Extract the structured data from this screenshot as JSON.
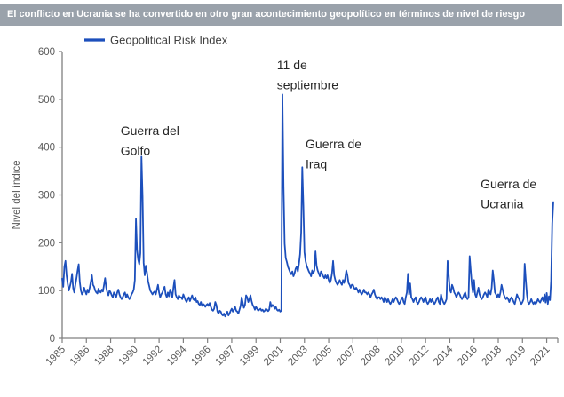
{
  "banner": {
    "title": "El conflicto en Ucrania se ha convertido en otro gran acontecimiento geopolítico en términos de nivel de riesgo"
  },
  "colors": {
    "banner_bg": "#9aa2ab",
    "line": "#1c4fbc",
    "axis": "#808080",
    "tick_label": "#595959",
    "annotation": "#262626",
    "legend_text": "#404040"
  },
  "chart_data": {
    "type": "line",
    "legend": [
      {
        "label": "Geopolitical Risk Index"
      }
    ],
    "ylabel": "Nivel del índice",
    "ylim": [
      0,
      600
    ],
    "y_ticks": [
      0,
      100,
      200,
      300,
      400,
      500,
      600
    ],
    "grid": false,
    "legend_position": "top-left",
    "x_start_year": 1985,
    "x_tick_interval_months": 22,
    "x_tick_labels": [
      "1985",
      "1986",
      "1988",
      "1990",
      "1992",
      "1994",
      "1996",
      "1997",
      "1999",
      "2001",
      "2003",
      "2005",
      "2007",
      "2008",
      "2010",
      "2012",
      "2014",
      "2016",
      "2018",
      "2019",
      "2021"
    ],
    "series": [
      {
        "name": "Geopolitical Risk Index",
        "frequency": "monthly",
        "values": [
          125,
          108,
          150,
          162,
          132,
          115,
          100,
          108,
          118,
          135,
          105,
          96,
          112,
          126,
          142,
          155,
          118,
          100,
          92,
          96,
          106,
          98,
          92,
          102,
          96,
          106,
          118,
          132,
          112,
          108,
          100,
          96,
          94,
          104,
          98,
          96,
          102,
          98,
          112,
          126,
          106,
          96,
          90,
          100,
          96,
          90,
          86,
          96,
          92,
          86,
          96,
          102,
          92,
          86,
          82,
          86,
          92,
          96,
          86,
          92,
          86,
          82,
          86,
          92,
          96,
          102,
          122,
          250,
          185,
          165,
          155,
          178,
          380,
          298,
          158,
          132,
          152,
          138,
          120,
          110,
          100,
          96,
          92,
          96,
          98,
          92,
          102,
          112,
          96,
          86,
          92,
          96,
          102,
          108,
          92,
          86,
          96,
          88,
          102,
          96,
          86,
          106,
          122,
          92,
          86,
          82,
          90,
          86,
          86,
          82,
          92,
          86,
          80,
          76,
          82,
          86,
          78,
          84,
          90,
          82,
          80,
          86,
          76,
          78,
          72,
          70,
          76,
          68,
          72,
          70,
          66,
          70,
          72,
          68,
          74,
          66,
          60,
          58,
          62,
          76,
          70,
          56,
          52,
          58,
          56,
          50,
          48,
          52,
          46,
          50,
          56,
          48,
          52,
          58,
          62,
          56,
          60,
          66,
          58,
          56,
          52,
          60,
          68,
          86,
          74,
          64,
          70,
          90,
          86,
          76,
          82,
          90,
          78,
          70,
          66,
          60,
          66,
          62,
          58,
          60,
          62,
          58,
          60,
          56,
          58,
          62,
          60,
          57,
          60,
          76,
          66,
          70,
          68,
          62,
          66,
          60,
          58,
          60,
          56,
          58,
          510,
          318,
          198,
          168,
          160,
          150,
          144,
          138,
          134,
          140,
          130,
          136,
          146,
          150,
          140,
          156,
          176,
          222,
          358,
          278,
          180,
          162,
          152,
          146,
          140,
          136,
          130,
          142,
          136,
          142,
          182,
          152,
          142,
          136,
          130,
          140,
          136,
          130,
          126,
          132,
          126,
          132,
          122,
          116,
          122,
          136,
          162,
          132,
          122,
          116,
          112,
          116,
          122,
          116,
          112,
          122,
          116,
          126,
          142,
          132,
          116,
          112,
          106,
          112,
          112,
          106,
          102,
          106,
          102,
          96,
          102,
          96,
          92,
          96,
          102,
          96,
          96,
          92,
          96,
          92,
          86,
          92,
          96,
          102,
          92,
          86,
          82,
          86,
          86,
          82,
          86,
          82,
          76,
          86,
          82,
          76,
          82,
          76,
          72,
          76,
          82,
          76,
          82,
          86,
          82,
          76,
          72,
          76,
          82,
          86,
          76,
          72,
          86,
          96,
          135,
          92,
          115,
          86,
          82,
          76,
          82,
          86,
          76,
          72,
          76,
          82,
          86,
          82,
          76,
          82,
          86,
          76,
          72,
          76,
          82,
          76,
          82,
          76,
          72,
          76,
          82,
          86,
          76,
          72,
          92,
          82,
          76,
          72,
          76,
          82,
          162,
          132,
          102,
          96,
          112,
          106,
          96,
          92,
          86,
          92,
          96,
          92,
          86,
          82,
          86,
          92,
          96,
          86,
          82,
          86,
          172,
          142,
          112,
          96,
          122,
          92,
          86,
          96,
          106,
          92,
          86,
          82,
          86,
          92,
          96,
          92,
          86,
          102,
          96,
          92,
          106,
          142,
          122,
          96,
          92,
          86,
          92,
          86,
          96,
          112,
          102,
          92,
          86,
          82,
          86,
          82,
          76,
          82,
          86,
          82,
          76,
          72,
          82,
          92,
          86,
          82,
          76,
          72,
          76,
          82,
          156,
          122,
          92,
          76,
          72,
          76,
          82,
          76,
          72,
          76,
          72,
          76,
          82,
          78,
          75,
          80,
          86,
          78,
          92,
          75,
          95,
          72,
          88,
          80,
          120,
          240,
          285
        ]
      }
    ],
    "annotations": [
      {
        "name": "gulf-war",
        "lines": [
          "Guerra del",
          "Golfo"
        ],
        "month": 53,
        "value": 448
      },
      {
        "name": "september-11",
        "lines": [
          "11 de",
          "septiembre"
        ],
        "month": 195,
        "value": 585
      },
      {
        "name": "iraq-war",
        "lines": [
          "Guerra de",
          "Iraq"
        ],
        "month": 221,
        "value": 420
      },
      {
        "name": "ukraine-war",
        "lines": [
          "Guerra de",
          "Ucrania"
        ],
        "month": 380,
        "value": 336
      }
    ]
  }
}
